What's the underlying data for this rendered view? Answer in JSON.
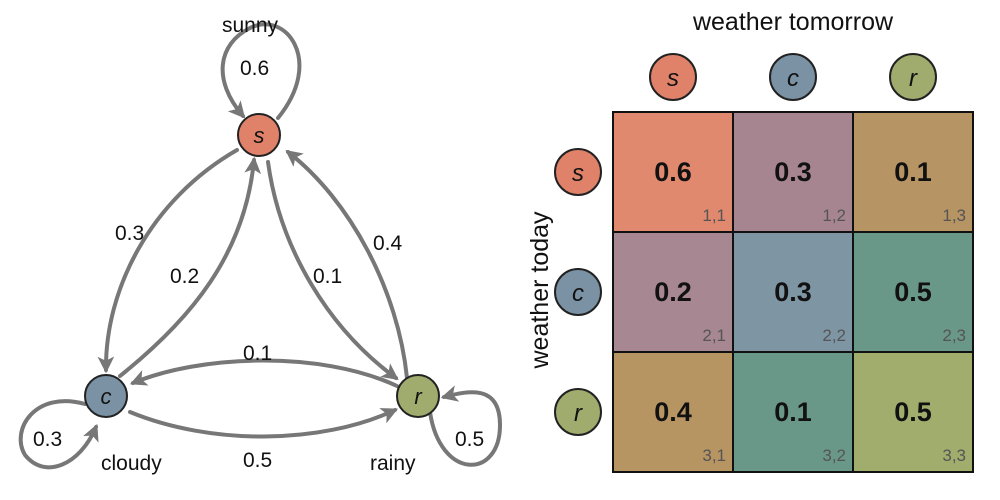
{
  "nodes": {
    "sunny": {
      "letter": "s",
      "name": "sunny",
      "color": "#E0826A"
    },
    "cloudy": {
      "letter": "c",
      "name": "cloudy",
      "color": "#7A92A3"
    },
    "rainy": {
      "letter": "r",
      "name": "rainy",
      "color": "#A0AC6E"
    }
  },
  "edges": {
    "s_s": "0.6",
    "s_c": "0.3",
    "c_s": "0.2",
    "s_r": "0.1",
    "r_s": "0.4",
    "r_c": "0.1",
    "c_r": "0.5",
    "c_c": "0.3",
    "r_r": "0.5"
  },
  "matrix": {
    "col_title": "weather tomorrow",
    "row_title": "weather today",
    "col_headers": [
      "s",
      "c",
      "r"
    ],
    "row_headers": [
      "s",
      "c",
      "r"
    ],
    "cells": [
      [
        {
          "value": "0.6",
          "index": "1,1",
          "color": "#E0896E"
        },
        {
          "value": "0.3",
          "index": "1,2",
          "color": "#A68591"
        },
        {
          "value": "0.1",
          "index": "1,3",
          "color": "#B69463"
        }
      ],
      [
        {
          "value": "0.2",
          "index": "2,1",
          "color": "#A78791"
        },
        {
          "value": "0.3",
          "index": "2,2",
          "color": "#7E95A4"
        },
        {
          "value": "0.5",
          "index": "2,3",
          "color": "#6A9888"
        }
      ],
      [
        {
          "value": "0.4",
          "index": "3,1",
          "color": "#B79563"
        },
        {
          "value": "0.1",
          "index": "3,2",
          "color": "#6A9888"
        },
        {
          "value": "0.5",
          "index": "3,3",
          "color": "#A1AD6D"
        }
      ]
    ]
  }
}
